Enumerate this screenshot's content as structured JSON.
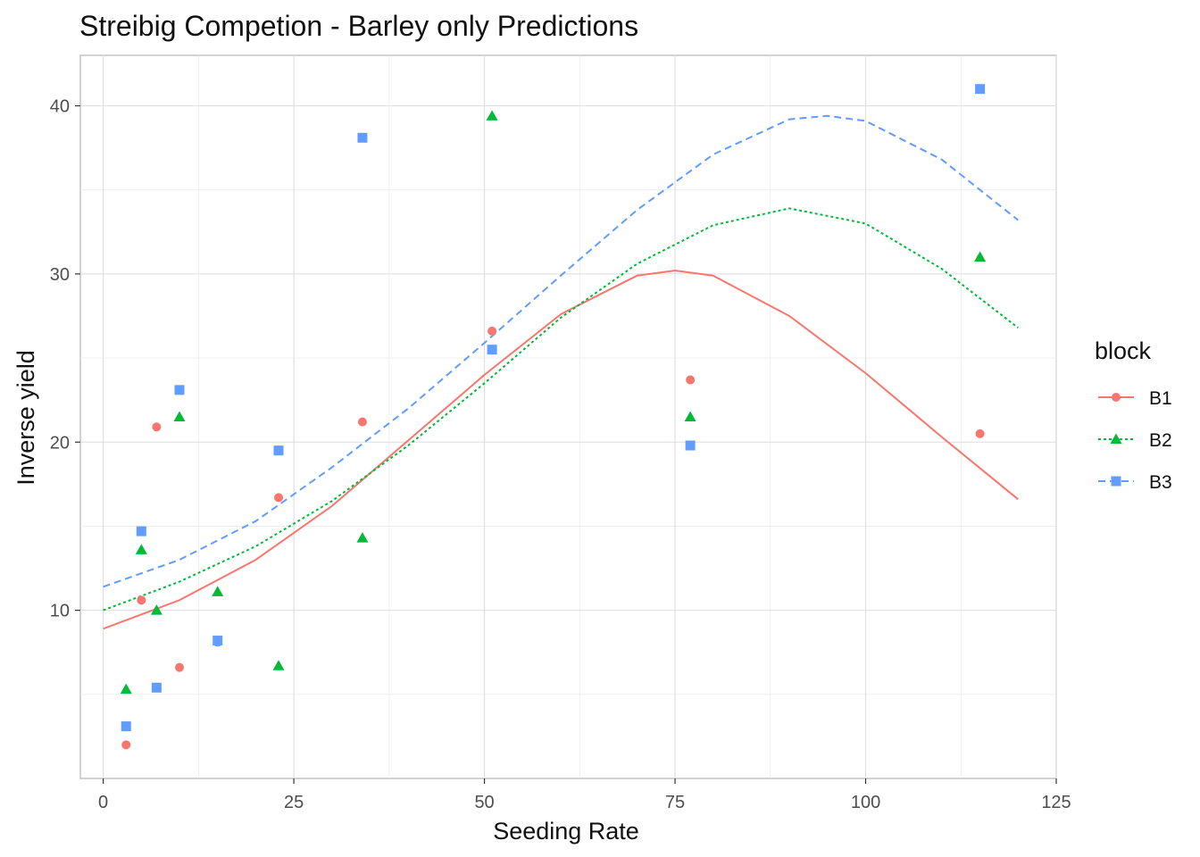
{
  "chart_data": {
    "type": "scatter",
    "title": "Streibig Competion - Barley only Predictions",
    "xlabel": "Seeding Rate",
    "ylabel": "Inverse yield",
    "xlim": [
      -3,
      125
    ],
    "ylim": [
      0,
      43
    ],
    "x_ticks": [
      0,
      25,
      50,
      75,
      100,
      125
    ],
    "y_ticks": [
      10,
      20,
      30,
      40
    ],
    "grid": true,
    "legend": {
      "title": "block",
      "placement": "right"
    },
    "series": [
      {
        "name": "B1",
        "color": "#F8766D",
        "marker": "circle",
        "line_style": "solid",
        "points": [
          [
            3,
            2.0
          ],
          [
            5,
            10.6
          ],
          [
            7,
            20.9
          ],
          [
            10,
            6.6
          ],
          [
            15,
            8.1
          ],
          [
            23,
            16.7
          ],
          [
            34,
            21.2
          ],
          [
            51,
            26.6
          ],
          [
            77,
            23.7
          ],
          [
            115,
            20.5
          ]
        ],
        "fit": [
          [
            0,
            8.9
          ],
          [
            10,
            10.6
          ],
          [
            20,
            13.0
          ],
          [
            30,
            16.2
          ],
          [
            40,
            20.1
          ],
          [
            50,
            24.0
          ],
          [
            60,
            27.6
          ],
          [
            70,
            29.9
          ],
          [
            75,
            30.2
          ],
          [
            80,
            29.9
          ],
          [
            90,
            27.5
          ],
          [
            100,
            24.1
          ],
          [
            110,
            20.3
          ],
          [
            120,
            16.6
          ]
        ]
      },
      {
        "name": "B2",
        "color": "#00BA38",
        "marker": "triangle",
        "line_style": "dotted",
        "points": [
          [
            3,
            5.3
          ],
          [
            5,
            13.6
          ],
          [
            7,
            10.0
          ],
          [
            10,
            21.5
          ],
          [
            15,
            11.1
          ],
          [
            23,
            6.7
          ],
          [
            34,
            14.3
          ],
          [
            51,
            39.4
          ],
          [
            77,
            21.5
          ],
          [
            115,
            31.0
          ]
        ],
        "fit": [
          [
            0,
            10.0
          ],
          [
            10,
            11.7
          ],
          [
            20,
            13.8
          ],
          [
            30,
            16.5
          ],
          [
            40,
            19.8
          ],
          [
            50,
            23.5
          ],
          [
            60,
            27.4
          ],
          [
            70,
            30.6
          ],
          [
            80,
            32.9
          ],
          [
            90,
            33.9
          ],
          [
            100,
            33.0
          ],
          [
            110,
            30.3
          ],
          [
            120,
            26.8
          ]
        ]
      },
      {
        "name": "B3",
        "color": "#619CFF",
        "marker": "square",
        "line_style": "dashed",
        "points": [
          [
            3,
            3.1
          ],
          [
            5,
            14.7
          ],
          [
            7,
            5.4
          ],
          [
            10,
            23.1
          ],
          [
            15,
            8.2
          ],
          [
            23,
            19.5
          ],
          [
            34,
            38.1
          ],
          [
            51,
            25.5
          ],
          [
            77,
            19.8
          ],
          [
            115,
            41.0
          ]
        ],
        "fit": [
          [
            0,
            11.4
          ],
          [
            10,
            13.0
          ],
          [
            20,
            15.3
          ],
          [
            30,
            18.5
          ],
          [
            40,
            22.0
          ],
          [
            50,
            25.9
          ],
          [
            60,
            29.9
          ],
          [
            70,
            33.8
          ],
          [
            80,
            37.1
          ],
          [
            90,
            39.2
          ],
          [
            95,
            39.4
          ],
          [
            100,
            39.1
          ],
          [
            110,
            36.8
          ],
          [
            120,
            33.2
          ]
        ]
      }
    ]
  }
}
